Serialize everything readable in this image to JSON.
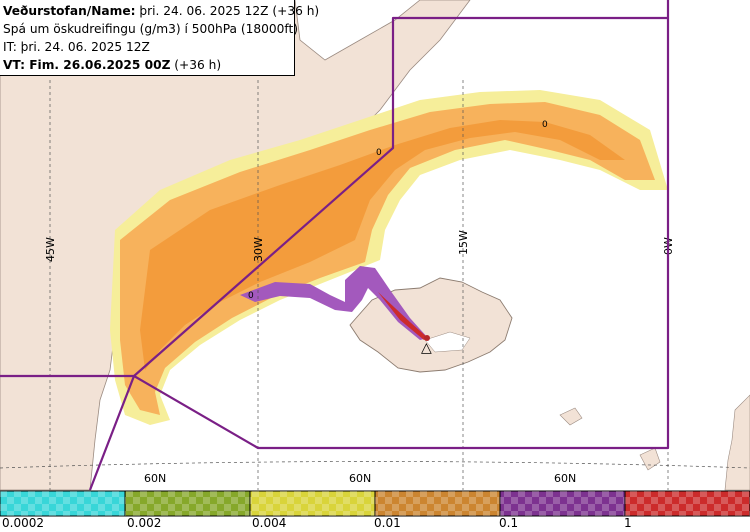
{
  "header": {
    "line1_bold": "Veðurstofan/Name:",
    "line1_rest": " þri. 24. 06. 2025 12Z (+36 h)",
    "line2": "Spá um öskudreifingu (g/m3) í 500hPa (18000ft)",
    "line3": "IT: þri. 24. 06. 2025 12Z",
    "line4_bold": "VT: Fim. 26.06.2025 00Z",
    "line4_rest": " (+36 h)"
  },
  "map": {
    "lon_labels": [
      "45W",
      "30W",
      "15W",
      "0W"
    ],
    "lat_labels": [
      "60N",
      "60N",
      "60N"
    ],
    "contour_labels": [
      "0",
      "0",
      "0"
    ],
    "source_marker": "△"
  },
  "legend": {
    "labels": [
      "0.0002",
      "0.002",
      "0.004",
      "0.01",
      "0.1",
      "1"
    ],
    "colors": [
      "#38d6d8",
      "#86a82a",
      "#d9d43a",
      "#cc8530",
      "#7d3290",
      "#cc2b2b"
    ]
  }
}
